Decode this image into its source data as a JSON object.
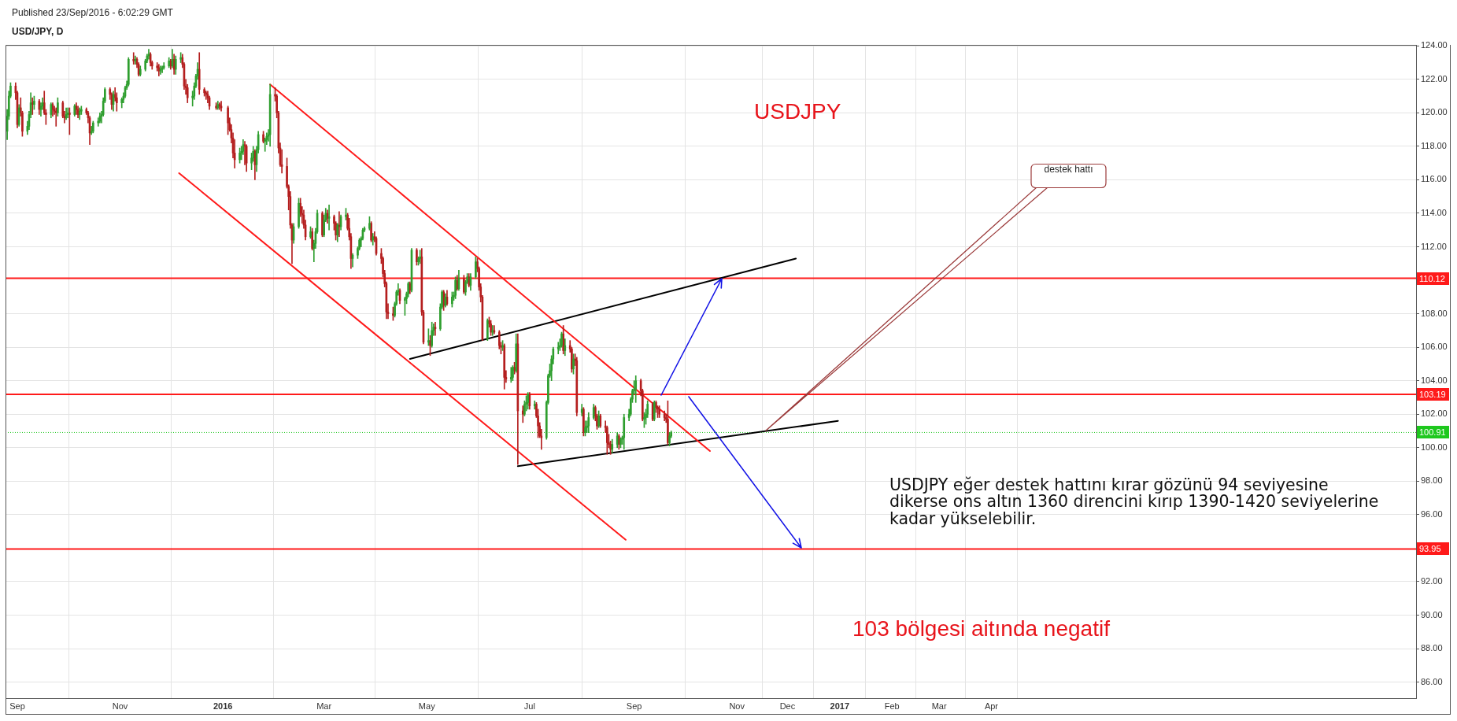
{
  "chart_data": {
    "type": "candlestick",
    "title": "USD/JPY, D",
    "annotations": [
      "Published 23/Sep/2016 - 6:02:29 GMT",
      "USDJPY",
      "destek hattı",
      "USDJPY eğer destek hattını kırar gözünü 94 seviyesine\ndikerse ons altın 1360 direncini kırıp 1390-1420 seviyelerine\nkadar yükselebilir.",
      "103 bölgesi aitında negatif"
    ],
    "xlim": [
      "2015-08-25",
      "2017-12-09"
    ],
    "ylim": [
      85.04,
      124.06
    ],
    "xticks": [
      {
        "value": "2015-09-01",
        "label": "Sep"
      },
      {
        "value": "2015-11-01",
        "label": "Nov"
      },
      {
        "value": "2016-01-01",
        "label": "2016"
      },
      {
        "value": "2016-03-01",
        "label": "Mar"
      },
      {
        "value": "2016-05-01",
        "label": "May"
      },
      {
        "value": "2016-07-01",
        "label": "Jul"
      },
      {
        "value": "2016-09-01",
        "label": "Sep"
      },
      {
        "value": "2016-11-01",
        "label": "Nov"
      },
      {
        "value": "2016-12-01",
        "label": "Dec"
      },
      {
        "value": "2017-01-01",
        "label": "2017"
      },
      {
        "value": "2017-02-01",
        "label": "Feb"
      },
      {
        "value": "2017-03-01",
        "label": "Mar"
      },
      {
        "value": "2017-04-01",
        "label": "Apr"
      }
    ],
    "yticks": [
      {
        "value": 124,
        "label": "124.00"
      },
      {
        "value": 122,
        "label": "122.00"
      },
      {
        "value": 120,
        "label": "120.00"
      },
      {
        "value": 118,
        "label": "118.00"
      },
      {
        "value": 116,
        "label": "116.00"
      },
      {
        "value": 114,
        "label": "114.00"
      },
      {
        "value": 112,
        "label": "112.00"
      },
      {
        "value": 108,
        "label": "108.00"
      },
      {
        "value": 106,
        "label": "106.00"
      },
      {
        "value": 104,
        "label": "104.00"
      },
      {
        "value": 102,
        "label": "102.00"
      },
      {
        "value": 100,
        "label": "100.00"
      },
      {
        "value": 98,
        "label": "98.00"
      },
      {
        "value": 96,
        "label": "96.00"
      },
      {
        "value": 92,
        "label": "92.00"
      },
      {
        "value": 90,
        "label": "90.00"
      },
      {
        "value": 88,
        "label": "88.00"
      },
      {
        "value": 86,
        "label": "86.00"
      }
    ],
    "grid": true,
    "ref_lines": [
      {
        "axis": "y",
        "value": 110.12,
        "label": "110.12",
        "color": "#ff1a1a"
      },
      {
        "axis": "y",
        "value": 103.19,
        "label": "103.19",
        "color": "#ff1a1a"
      },
      {
        "axis": "y",
        "value": 100.91,
        "label": "100.91",
        "color": "#1ec81e",
        "line_style": "dotted"
      },
      {
        "axis": "y",
        "value": 93.95,
        "label": "93.95",
        "color": "#ff1a1a"
      }
    ],
    "series": [
      {
        "color": "#2e9e2e",
        "x": [
          "2015-08-26",
          "2015-08-27",
          "2015-08-28",
          "2015-09-02",
          "2015-09-07",
          "2015-09-08",
          "2015-09-09",
          "2015-09-11",
          "2015-09-15",
          "2015-09-16",
          "2015-09-21",
          "2015-09-25",
          "2015-09-30",
          "2015-10-01",
          "2015-10-05",
          "2015-10-08",
          "2015-10-09",
          "2015-10-15",
          "2015-10-16",
          "2015-10-19",
          "2015-10-20",
          "2015-10-21",
          "2015-10-22",
          "2015-10-23",
          "2015-10-28",
          "2015-11-02",
          "2015-11-03",
          "2015-11-04",
          "2015-11-05",
          "2015-11-06",
          "2015-11-10",
          "2015-11-13",
          "2015-11-16",
          "2015-11-17",
          "2015-11-18",
          "2015-11-25",
          "2015-11-26",
          "2015-11-27",
          "2015-11-30",
          "2015-12-02",
          "2015-12-04",
          "2015-12-07",
          "2015-12-14",
          "2015-12-15",
          "2015-12-16",
          "2015-12-17",
          "2015-12-29",
          "2016-01-11",
          "2016-01-12",
          "2016-01-13",
          "2016-01-18",
          "2016-01-19",
          "2016-01-21",
          "2016-01-22",
          "2016-01-26",
          "2016-01-27",
          "2016-01-28",
          "2016-01-29",
          "2016-02-12",
          "2016-02-15",
          "2016-02-22",
          "2016-02-24",
          "2016-02-25",
          "2016-02-26",
          "2016-03-01",
          "2016-03-02",
          "2016-03-04",
          "2016-03-09",
          "2016-03-11",
          "2016-03-14",
          "2016-03-18",
          "2016-03-21",
          "2016-03-22",
          "2016-03-23",
          "2016-03-24",
          "2016-03-25",
          "2016-03-28",
          "2016-03-30",
          "2016-04-12",
          "2016-04-13",
          "2016-04-14",
          "2016-04-18",
          "2016-04-19",
          "2016-04-20",
          "2016-04-22",
          "2016-04-26",
          "2016-04-27",
          "2016-05-02",
          "2016-05-04",
          "2016-05-05",
          "2016-05-09",
          "2016-05-10",
          "2016-05-12",
          "2016-05-16",
          "2016-05-17",
          "2016-05-18",
          "2016-05-20",
          "2016-05-24",
          "2016-05-25",
          "2016-05-27",
          "2016-05-30",
          "2016-06-06",
          "2016-06-09",
          "2016-06-15",
          "2016-06-20",
          "2016-06-21",
          "2016-06-23",
          "2016-06-28",
          "2016-06-29",
          "2016-06-30",
          "2016-07-04",
          "2016-07-11",
          "2016-07-12",
          "2016-07-13",
          "2016-07-14",
          "2016-07-15",
          "2016-07-18",
          "2016-07-19",
          "2016-07-20",
          "2016-07-22",
          "2016-07-27",
          "2016-08-01",
          "2016-08-03",
          "2016-08-04",
          "2016-08-05",
          "2016-08-08",
          "2016-08-11",
          "2016-08-19",
          "2016-08-22",
          "2016-08-24",
          "2016-08-25",
          "2016-08-26",
          "2016-08-29",
          "2016-08-30",
          "2016-08-31",
          "2016-09-01",
          "2016-09-02",
          "2016-09-07",
          "2016-09-08",
          "2016-09-09",
          "2016-09-13",
          "2016-09-22",
          "2016-09-23"
        ],
        "ohlc": [
          [
            118.9,
            120.2,
            118.4,
            119.8
          ],
          [
            119.8,
            121.3,
            119.6,
            121.0
          ],
          [
            121.0,
            121.8,
            120.9,
            121.6
          ],
          [
            119.3,
            120.5,
            119.2,
            120.3
          ],
          [
            118.9,
            119.5,
            118.7,
            119.2
          ],
          [
            119.2,
            120.1,
            119.0,
            119.9
          ],
          [
            119.9,
            121.2,
            119.7,
            120.6
          ],
          [
            120.5,
            121.0,
            120.2,
            120.7
          ],
          [
            120.2,
            120.6,
            119.8,
            120.4
          ],
          [
            120.4,
            120.9,
            120.2,
            120.6
          ],
          [
            119.9,
            120.6,
            119.7,
            120.5
          ],
          [
            120.0,
            120.9,
            119.8,
            120.6
          ],
          [
            119.7,
            120.3,
            119.6,
            119.9
          ],
          [
            119.9,
            120.3,
            119.7,
            120.0
          ],
          [
            119.9,
            120.5,
            119.8,
            120.4
          ],
          [
            119.9,
            120.3,
            119.6,
            120.1
          ],
          [
            120.1,
            120.4,
            119.9,
            120.2
          ],
          [
            118.8,
            119.2,
            118.7,
            118.9
          ],
          [
            118.9,
            119.5,
            118.8,
            119.4
          ],
          [
            119.4,
            119.7,
            119.2,
            119.5
          ],
          [
            119.5,
            120.0,
            119.4,
            119.8
          ],
          [
            119.8,
            120.1,
            119.4,
            119.9
          ],
          [
            119.9,
            120.9,
            119.8,
            120.7
          ],
          [
            120.7,
            121.5,
            120.6,
            121.4
          ],
          [
            120.5,
            121.3,
            120.1,
            121.1
          ],
          [
            120.6,
            120.9,
            120.3,
            120.8
          ],
          [
            120.8,
            121.2,
            120.6,
            121.0
          ],
          [
            121.0,
            121.6,
            120.9,
            121.5
          ],
          [
            121.5,
            121.9,
            121.4,
            121.7
          ],
          [
            121.7,
            123.3,
            121.6,
            123.2
          ],
          [
            123.1,
            123.4,
            122.9,
            123.2
          ],
          [
            122.3,
            122.8,
            122.2,
            122.6
          ],
          [
            122.6,
            123.2,
            122.5,
            123.1
          ],
          [
            123.1,
            123.5,
            123.0,
            123.4
          ],
          [
            123.4,
            123.8,
            123.2,
            123.5
          ],
          [
            122.5,
            122.8,
            122.3,
            122.6
          ],
          [
            122.6,
            122.8,
            122.4,
            122.7
          ],
          [
            122.7,
            123.0,
            122.6,
            122.8
          ],
          [
            122.8,
            123.3,
            122.7,
            123.1
          ],
          [
            122.8,
            123.8,
            122.7,
            123.2
          ],
          [
            122.6,
            123.4,
            122.3,
            123.2
          ],
          [
            123.2,
            123.6,
            123.0,
            123.3
          ],
          [
            120.9,
            121.3,
            120.4,
            121.0
          ],
          [
            121.0,
            121.8,
            120.8,
            121.6
          ],
          [
            121.6,
            122.3,
            121.5,
            122.2
          ],
          [
            122.2,
            123.0,
            122.0,
            122.6
          ],
          [
            120.3,
            120.7,
            120.2,
            120.5
          ],
          [
            117.2,
            117.9,
            117.0,
            117.6
          ],
          [
            117.6,
            118.0,
            117.2,
            117.7
          ],
          [
            117.7,
            118.4,
            117.5,
            118.1
          ],
          [
            117.0,
            117.6,
            116.6,
            117.3
          ],
          [
            117.3,
            118.0,
            117.1,
            117.7
          ],
          [
            116.9,
            118.0,
            116.5,
            117.8
          ],
          [
            117.8,
            118.9,
            117.6,
            118.7
          ],
          [
            118.3,
            118.5,
            117.7,
            118.4
          ],
          [
            118.4,
            118.8,
            118.1,
            118.6
          ],
          [
            118.6,
            119.0,
            118.3,
            118.7
          ],
          [
            118.7,
            121.7,
            118.0,
            121.1
          ],
          [
            112.4,
            113.4,
            112.2,
            113.2
          ],
          [
            113.2,
            114.9,
            113.1,
            114.6
          ],
          [
            112.6,
            113.2,
            112.5,
            112.9
          ],
          [
            111.9,
            112.4,
            111.1,
            112.2
          ],
          [
            112.2,
            113.1,
            111.9,
            112.9
          ],
          [
            112.9,
            114.2,
            112.8,
            114.0
          ],
          [
            112.7,
            113.9,
            112.6,
            113.6
          ],
          [
            113.6,
            114.3,
            113.5,
            114.0
          ],
          [
            113.7,
            114.5,
            113.0,
            113.8
          ],
          [
            112.7,
            113.4,
            112.3,
            113.3
          ],
          [
            113.2,
            113.9,
            113.0,
            113.8
          ],
          [
            113.8,
            114.3,
            113.6,
            113.9
          ],
          [
            111.3,
            111.6,
            110.8,
            111.5
          ],
          [
            111.5,
            112.0,
            111.3,
            111.9
          ],
          [
            111.9,
            112.5,
            111.8,
            112.4
          ],
          [
            112.4,
            112.6,
            112.0,
            112.5
          ],
          [
            112.5,
            113.1,
            112.4,
            113.0
          ],
          [
            113.0,
            113.2,
            112.9,
            113.1
          ],
          [
            113.1,
            113.8,
            113.0,
            113.4
          ],
          [
            112.4,
            112.8,
            112.1,
            112.6
          ],
          [
            107.9,
            108.7,
            107.8,
            108.6
          ],
          [
            108.6,
            109.4,
            108.5,
            109.3
          ],
          [
            109.3,
            109.8,
            109.1,
            109.4
          ],
          [
            108.8,
            109.0,
            107.9,
            108.9
          ],
          [
            108.9,
            109.3,
            108.6,
            109.2
          ],
          [
            109.2,
            109.9,
            109.0,
            109.8
          ],
          [
            109.4,
            111.9,
            109.3,
            111.8
          ],
          [
            111.1,
            111.4,
            110.9,
            111.3
          ],
          [
            111.3,
            111.8,
            111.0,
            111.4
          ],
          [
            106.3,
            107.1,
            106.1,
            106.4
          ],
          [
            106.1,
            107.5,
            106.0,
            107.0
          ],
          [
            107.0,
            107.4,
            106.7,
            107.2
          ],
          [
            107.1,
            108.6,
            107.0,
            108.4
          ],
          [
            108.4,
            109.4,
            108.3,
            109.3
          ],
          [
            108.5,
            109.2,
            108.4,
            109.0
          ],
          [
            108.6,
            109.3,
            108.4,
            109.0
          ],
          [
            109.0,
            109.3,
            108.8,
            109.1
          ],
          [
            109.1,
            110.2,
            108.9,
            110.0
          ],
          [
            109.5,
            110.6,
            109.4,
            110.1
          ],
          [
            109.3,
            110.0,
            109.1,
            109.9
          ],
          [
            109.9,
            110.4,
            109.8,
            110.2
          ],
          [
            109.7,
            110.4,
            109.4,
            110.2
          ],
          [
            110.2,
            111.4,
            110.1,
            111.1
          ],
          [
            106.5,
            107.7,
            106.4,
            107.6
          ],
          [
            106.9,
            107.3,
            106.7,
            107.0
          ],
          [
            106.0,
            106.4,
            105.8,
            106.1
          ],
          [
            104.1,
            104.8,
            103.9,
            104.2
          ],
          [
            104.2,
            104.9,
            104.0,
            104.8
          ],
          [
            104.6,
            106.8,
            104.5,
            106.2
          ],
          [
            102.0,
            102.8,
            101.9,
            102.6
          ],
          [
            102.6,
            103.1,
            102.2,
            102.7
          ],
          [
            102.7,
            103.3,
            102.3,
            103.2
          ],
          [
            102.5,
            102.8,
            102.3,
            102.6
          ],
          [
            100.6,
            102.8,
            100.5,
            102.7
          ],
          [
            102.7,
            104.4,
            102.6,
            104.3
          ],
          [
            104.3,
            105.0,
            104.2,
            104.6
          ],
          [
            104.6,
            105.5,
            104.0,
            105.3
          ],
          [
            105.3,
            106.0,
            105.0,
            105.9
          ],
          [
            105.9,
            106.3,
            105.6,
            106.0
          ],
          [
            106.0,
            106.5,
            105.8,
            106.1
          ],
          [
            106.1,
            106.9,
            106.0,
            106.8
          ],
          [
            105.8,
            106.5,
            105.5,
            106.1
          ],
          [
            104.7,
            105.6,
            104.4,
            105.3
          ],
          [
            102.1,
            102.6,
            101.9,
            102.3
          ],
          [
            100.9,
            101.6,
            100.7,
            101.2
          ],
          [
            101.2,
            101.6,
            100.9,
            101.3
          ],
          [
            101.3,
            102.1,
            100.9,
            101.8
          ],
          [
            101.8,
            102.6,
            101.7,
            102.4
          ],
          [
            101.3,
            102.2,
            101.2,
            101.9
          ],
          [
            99.9,
            100.5,
            99.7,
            100.2
          ],
          [
            100.2,
            100.9,
            100.0,
            100.7
          ],
          [
            100.2,
            100.6,
            100.0,
            100.5
          ],
          [
            100.5,
            100.7,
            100.2,
            100.6
          ],
          [
            100.6,
            102.0,
            99.9,
            101.8
          ],
          [
            101.8,
            102.3,
            101.6,
            102.0
          ],
          [
            102.0,
            103.0,
            101.9,
            102.9
          ],
          [
            102.9,
            103.5,
            102.7,
            103.4
          ],
          [
            103.4,
            104.0,
            103.2,
            103.5
          ],
          [
            103.5,
            104.3,
            102.7,
            104.0
          ],
          [
            101.7,
            102.1,
            101.2,
            101.8
          ],
          [
            101.8,
            102.3,
            101.4,
            102.0
          ],
          [
            102.0,
            102.8,
            101.8,
            102.6
          ],
          [
            101.7,
            102.8,
            101.6,
            102.7
          ],
          [
            100.3,
            100.9,
            100.1,
            100.7
          ],
          [
            100.7,
            101.0,
            100.6,
            100.91
          ]
        ]
      },
      {
        "color": "#b41e1e",
        "x": [
          "2015-08-31",
          "2015-09-01",
          "2015-09-03",
          "2015-09-04",
          "2015-09-10",
          "2015-09-14",
          "2015-09-17",
          "2015-09-18",
          "2015-09-22",
          "2015-09-23",
          "2015-09-24",
          "2015-09-28",
          "2015-09-29",
          "2015-10-02",
          "2015-10-06",
          "2015-10-07",
          "2015-10-12",
          "2015-10-13",
          "2015-10-14",
          "2015-10-26",
          "2015-10-27",
          "2015-10-29",
          "2015-10-30",
          "2015-11-09",
          "2015-11-11",
          "2015-11-12",
          "2015-11-19",
          "2015-11-20",
          "2015-11-23",
          "2015-11-24",
          "2015-12-01",
          "2015-12-03",
          "2015-12-08",
          "2015-12-09",
          "2015-12-10",
          "2015-12-11",
          "2015-12-18",
          "2015-12-21",
          "2015-12-22",
          "2015-12-23",
          "2015-12-24",
          "2015-12-28",
          "2015-12-30",
          "2015-12-31",
          "2016-01-04",
          "2016-01-05",
          "2016-01-06",
          "2016-01-07",
          "2016-01-08",
          "2016-01-14",
          "2016-01-15",
          "2016-01-20",
          "2016-01-25",
          "2016-02-01",
          "2016-02-02",
          "2016-02-03",
          "2016-02-04",
          "2016-02-05",
          "2016-02-08",
          "2016-02-09",
          "2016-02-10",
          "2016-02-11",
          "2016-02-16",
          "2016-02-17",
          "2016-02-18",
          "2016-02-19",
          "2016-02-23",
          "2016-02-29",
          "2016-03-03",
          "2016-03-07",
          "2016-03-08",
          "2016-03-10",
          "2016-03-15",
          "2016-03-16",
          "2016-03-17",
          "2016-03-29",
          "2016-03-31",
          "2016-04-01",
          "2016-04-04",
          "2016-04-05",
          "2016-04-06",
          "2016-04-07",
          "2016-04-08",
          "2016-04-11",
          "2016-04-15",
          "2016-04-21",
          "2016-04-25",
          "2016-04-28",
          "2016-04-29",
          "2016-05-03",
          "2016-05-06",
          "2016-05-11",
          "2016-05-13",
          "2016-05-19",
          "2016-05-23",
          "2016-05-26",
          "2016-05-31",
          "2016-06-01",
          "2016-06-02",
          "2016-06-03",
          "2016-06-07",
          "2016-06-08",
          "2016-06-10",
          "2016-06-13",
          "2016-06-14",
          "2016-06-16",
          "2016-06-17",
          "2016-06-22",
          "2016-06-24",
          "2016-06-27",
          "2016-07-01",
          "2016-07-05",
          "2016-07-06",
          "2016-07-07",
          "2016-07-08",
          "2016-07-21",
          "2016-07-25",
          "2016-07-26",
          "2016-07-28",
          "2016-07-29",
          "2016-08-02",
          "2016-08-09",
          "2016-08-10",
          "2016-08-12",
          "2016-08-15",
          "2016-08-16",
          "2016-08-17",
          "2016-08-18",
          "2016-08-23",
          "2016-09-05",
          "2016-09-06",
          "2016-09-12",
          "2016-09-14",
          "2016-09-15",
          "2016-09-16",
          "2016-09-19",
          "2016-09-20",
          "2016-09-21"
        ],
        "ohlc": [
          [
            121.6,
            121.8,
            120.8,
            121.2
          ],
          [
            121.2,
            121.3,
            119.1,
            119.3
          ],
          [
            120.3,
            120.9,
            119.8,
            120.0
          ],
          [
            120.0,
            120.1,
            118.6,
            118.9
          ],
          [
            120.6,
            120.9,
            119.9,
            120.5
          ],
          [
            120.7,
            120.8,
            119.9,
            120.2
          ],
          [
            120.6,
            121.3,
            119.9,
            120.0
          ],
          [
            120.0,
            120.2,
            119.3,
            119.9
          ],
          [
            120.5,
            120.6,
            119.8,
            120.2
          ],
          [
            120.2,
            120.4,
            119.9,
            120.1
          ],
          [
            120.1,
            120.3,
            119.2,
            120.0
          ],
          [
            120.6,
            120.7,
            119.7,
            119.8
          ],
          [
            119.8,
            120.1,
            119.4,
            119.7
          ],
          [
            120.0,
            120.3,
            118.7,
            119.9
          ],
          [
            120.4,
            120.6,
            119.9,
            120.2
          ],
          [
            120.2,
            120.4,
            119.7,
            119.9
          ],
          [
            120.2,
            120.3,
            119.9,
            120.0
          ],
          [
            120.0,
            120.1,
            119.4,
            119.7
          ],
          [
            119.7,
            119.8,
            118.1,
            118.8
          ],
          [
            121.4,
            121.5,
            120.8,
            121.1
          ],
          [
            121.1,
            121.2,
            120.2,
            120.5
          ],
          [
            121.1,
            121.5,
            120.7,
            120.9
          ],
          [
            120.9,
            121.2,
            120.1,
            120.6
          ],
          [
            123.2,
            123.6,
            122.9,
            123.1
          ],
          [
            123.2,
            123.3,
            122.7,
            122.9
          ],
          [
            122.9,
            123.0,
            122.2,
            122.3
          ],
          [
            123.5,
            123.6,
            122.8,
            123.0
          ],
          [
            123.0,
            123.1,
            122.6,
            122.8
          ],
          [
            122.8,
            123.0,
            122.5,
            122.7
          ],
          [
            122.7,
            122.9,
            122.2,
            122.5
          ],
          [
            123.1,
            123.2,
            122.6,
            122.8
          ],
          [
            123.2,
            123.5,
            122.3,
            122.6
          ],
          [
            123.3,
            123.5,
            122.7,
            122.9
          ],
          [
            122.9,
            123.0,
            121.4,
            121.6
          ],
          [
            121.6,
            122.0,
            121.1,
            121.5
          ],
          [
            121.5,
            121.7,
            120.6,
            120.9
          ],
          [
            122.6,
            123.6,
            121.1,
            121.4
          ],
          [
            121.4,
            121.5,
            121.0,
            121.2
          ],
          [
            121.2,
            121.3,
            120.8,
            121.1
          ],
          [
            121.1,
            121.3,
            120.6,
            120.9
          ],
          [
            120.9,
            121.0,
            120.2,
            120.4
          ],
          [
            120.4,
            120.6,
            120.2,
            120.3
          ],
          [
            120.5,
            120.6,
            120.2,
            120.4
          ],
          [
            120.4,
            120.7,
            120.1,
            120.3
          ],
          [
            120.3,
            120.4,
            118.7,
            119.4
          ],
          [
            119.4,
            119.7,
            118.9,
            119.0
          ],
          [
            119.0,
            119.3,
            118.2,
            118.5
          ],
          [
            118.5,
            118.8,
            117.3,
            117.6
          ],
          [
            117.6,
            118.4,
            116.7,
            117.2
          ],
          [
            118.1,
            118.3,
            116.9,
            118.0
          ],
          [
            118.0,
            118.1,
            116.5,
            117.0
          ],
          [
            117.7,
            117.8,
            116.0,
            116.9
          ],
          [
            118.7,
            118.9,
            118.2,
            118.3
          ],
          [
            121.1,
            121.5,
            120.7,
            121.0
          ],
          [
            121.0,
            121.1,
            119.7,
            120.0
          ],
          [
            120.0,
            120.1,
            117.6,
            117.9
          ],
          [
            117.9,
            118.2,
            116.8,
            116.9
          ],
          [
            116.9,
            117.8,
            116.4,
            116.8
          ],
          [
            116.8,
            117.3,
            115.5,
            115.6
          ],
          [
            115.6,
            115.7,
            114.2,
            115.0
          ],
          [
            115.0,
            115.3,
            113.1,
            113.3
          ],
          [
            113.3,
            113.4,
            111.0,
            112.4
          ],
          [
            114.6,
            114.9,
            113.8,
            114.0
          ],
          [
            114.0,
            114.4,
            113.4,
            113.9
          ],
          [
            113.9,
            114.2,
            113.1,
            113.3
          ],
          [
            113.3,
            113.6,
            112.4,
            112.6
          ],
          [
            112.9,
            113.1,
            111.8,
            111.9
          ],
          [
            114.0,
            114.1,
            112.6,
            112.7
          ],
          [
            114.0,
            114.2,
            113.4,
            113.7
          ],
          [
            113.8,
            113.9,
            113.0,
            113.4
          ],
          [
            113.4,
            113.5,
            112.4,
            112.7
          ],
          [
            113.3,
            114.1,
            112.6,
            113.2
          ],
          [
            113.9,
            114.0,
            113.0,
            113.1
          ],
          [
            113.1,
            113.7,
            112.4,
            112.6
          ],
          [
            112.6,
            112.8,
            110.7,
            111.3
          ],
          [
            113.4,
            113.5,
            112.3,
            112.4
          ],
          [
            112.6,
            112.9,
            112.3,
            112.5
          ],
          [
            112.5,
            112.6,
            111.5,
            111.6
          ],
          [
            111.6,
            111.9,
            111.0,
            111.3
          ],
          [
            111.3,
            111.4,
            110.2,
            110.4
          ],
          [
            110.4,
            110.6,
            109.6,
            109.8
          ],
          [
            109.8,
            109.9,
            107.7,
            108.1
          ],
          [
            108.1,
            108.6,
            107.7,
            108.0
          ],
          [
            108.0,
            108.4,
            107.6,
            107.9
          ],
          [
            109.4,
            109.5,
            108.6,
            108.8
          ],
          [
            109.8,
            109.9,
            109.2,
            109.4
          ],
          [
            111.8,
            111.9,
            110.9,
            111.1
          ],
          [
            111.4,
            111.9,
            107.9,
            108.1
          ],
          [
            108.1,
            108.2,
            106.2,
            106.3
          ],
          [
            106.4,
            106.7,
            105.5,
            106.1
          ],
          [
            107.2,
            107.5,
            106.7,
            107.1
          ],
          [
            109.3,
            109.4,
            108.2,
            108.5
          ],
          [
            109.0,
            109.4,
            108.5,
            108.6
          ],
          [
            110.0,
            110.3,
            109.4,
            109.5
          ],
          [
            110.1,
            110.3,
            109.2,
            109.3
          ],
          [
            110.2,
            110.4,
            109.6,
            109.7
          ],
          [
            111.1,
            111.3,
            110.5,
            110.7
          ],
          [
            110.7,
            110.8,
            109.4,
            109.6
          ],
          [
            109.6,
            109.8,
            108.7,
            109.0
          ],
          [
            109.0,
            109.1,
            106.4,
            106.5
          ],
          [
            107.6,
            107.8,
            107.2,
            107.4
          ],
          [
            107.4,
            107.6,
            106.7,
            106.9
          ],
          [
            107.0,
            107.3,
            106.8,
            106.9
          ],
          [
            106.9,
            107.0,
            105.9,
            106.1
          ],
          [
            106.1,
            106.3,
            105.6,
            106.0
          ],
          [
            106.1,
            106.2,
            103.5,
            104.2
          ],
          [
            104.2,
            104.6,
            103.9,
            104.1
          ],
          [
            104.8,
            105.1,
            104.4,
            104.6
          ],
          [
            106.2,
            106.8,
            99.0,
            102.2
          ],
          [
            102.2,
            102.5,
            101.5,
            102.0
          ],
          [
            103.2,
            103.3,
            102.3,
            102.5
          ],
          [
            102.6,
            102.7,
            101.8,
            101.9
          ],
          [
            101.9,
            102.3,
            100.6,
            101.3
          ],
          [
            101.3,
            101.5,
            100.6,
            100.7
          ],
          [
            100.7,
            101.1,
            99.9,
            100.6
          ],
          [
            106.8,
            107.3,
            105.6,
            105.8
          ],
          [
            106.1,
            106.4,
            105.7,
            105.9
          ],
          [
            105.9,
            106.0,
            104.5,
            104.7
          ],
          [
            105.3,
            105.6,
            104.9,
            105.2
          ],
          [
            105.2,
            105.4,
            101.9,
            102.1
          ],
          [
            102.3,
            102.4,
            100.7,
            100.9
          ],
          [
            102.4,
            102.5,
            101.6,
            101.9
          ],
          [
            101.9,
            102.0,
            101.1,
            101.3
          ],
          [
            101.9,
            102.0,
            101.2,
            101.3
          ],
          [
            101.3,
            101.6,
            100.9,
            101.2
          ],
          [
            101.2,
            101.3,
            99.6,
            100.3
          ],
          [
            100.3,
            100.8,
            100.0,
            100.2
          ],
          [
            100.2,
            100.4,
            99.6,
            99.9
          ],
          [
            100.7,
            100.8,
            99.9,
            100.2
          ],
          [
            104.0,
            104.1,
            103.1,
            103.4
          ],
          [
            103.4,
            103.5,
            101.6,
            101.7
          ],
          [
            102.6,
            102.7,
            101.6,
            101.7
          ],
          [
            102.7,
            102.8,
            102.1,
            102.4
          ],
          [
            102.4,
            102.5,
            101.8,
            102.3
          ],
          [
            102.3,
            102.5,
            101.8,
            102.0
          ],
          [
            102.0,
            102.2,
            101.6,
            101.8
          ],
          [
            101.8,
            102.0,
            101.5,
            101.7
          ],
          [
            101.7,
            102.8,
            100.2,
            100.3
          ]
        ]
      },
      {
        "type": "line",
        "color": "#ff1a1a",
        "x": [
          "2016-01-29",
          "2016-10-16"
        ],
        "values": [
          121.7,
          99.8
        ]
      },
      {
        "type": "line",
        "color": "#ff1a1a",
        "x": [
          "2015-12-06",
          "2016-08-27"
        ],
        "values": [
          116.4,
          94.5
        ]
      },
      {
        "type": "line",
        "color": "#000000",
        "x": [
          "2016-04-21",
          "2016-12-06"
        ],
        "values": [
          105.3,
          111.3
        ]
      },
      {
        "type": "line",
        "color": "#000000",
        "x": [
          "2016-06-24",
          "2016-12-31"
        ],
        "values": [
          98.9,
          101.6
        ]
      }
    ]
  }
}
